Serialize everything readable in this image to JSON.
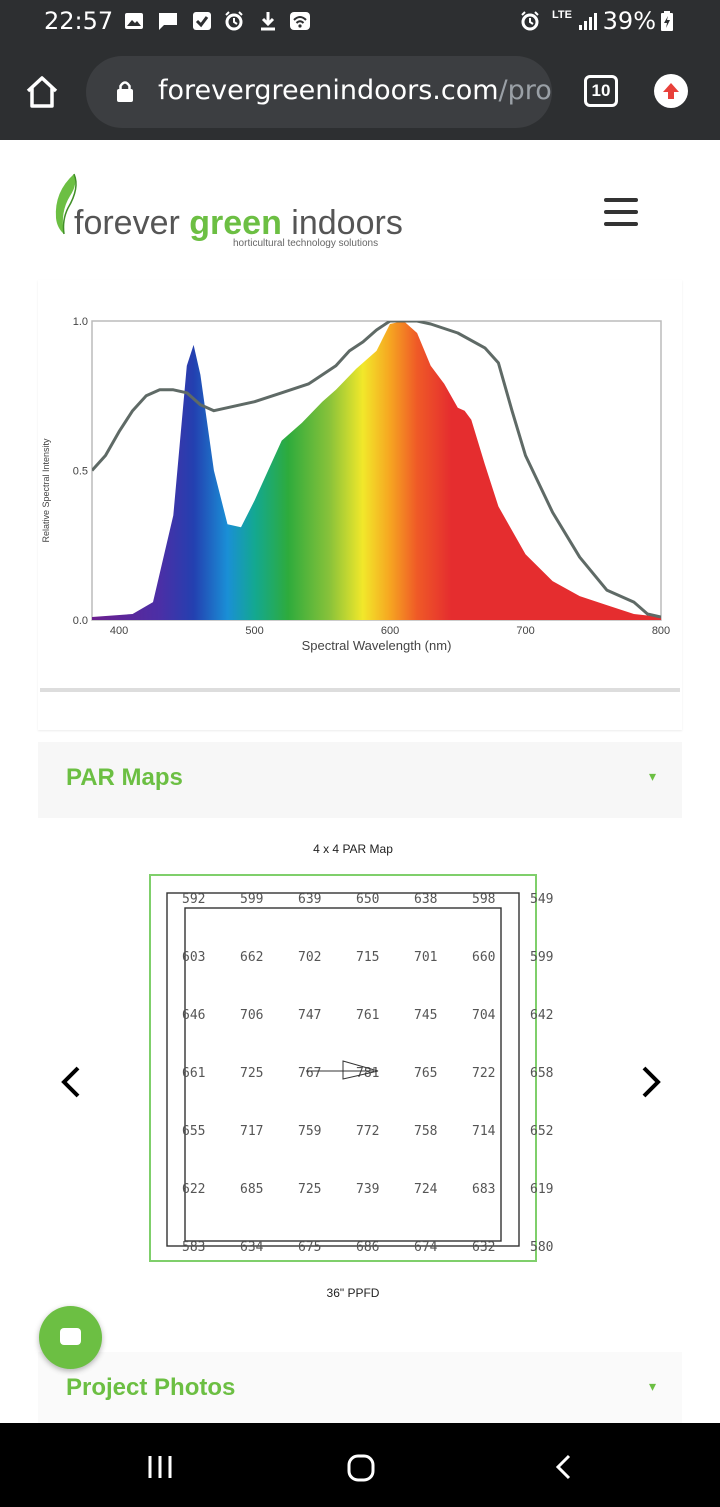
{
  "status_bar": {
    "time": "22:57",
    "network": "LTE",
    "battery": "39%",
    "icons": [
      "gallery-icon",
      "message-icon",
      "checkbox-icon",
      "alarm-icon",
      "download-icon",
      "wifi-icon",
      "alarm-icon",
      "signal-icon",
      "battery-charging-icon"
    ]
  },
  "browser": {
    "url_main": "forevergreenindoors.com",
    "url_rest": "/proc",
    "tab_count": "10"
  },
  "header": {
    "logo_word_1": "forever ",
    "logo_word_2": "green",
    "logo_word_3": " indoors",
    "logo_tagline": "horticultural technology solutions"
  },
  "spectrum_chart": {
    "xlabel": "Spectral Wavelength (nm)",
    "ylabel": "Relative Spectral Intensity",
    "xticks": [
      "400",
      "500",
      "600",
      "700",
      "800"
    ],
    "yticks": [
      "0.0",
      "0.5",
      "1.0"
    ]
  },
  "chart_data": {
    "type": "area",
    "xlabel": "Spectral Wavelength (nm)",
    "ylabel": "Relative Spectral Intensity",
    "xlim": [
      380,
      800
    ],
    "ylim": [
      0,
      1.0
    ],
    "series": [
      {
        "style": "filled-spectrum",
        "x": [
          380,
          410,
          425,
          440,
          450,
          455,
          460,
          470,
          480,
          490,
          500,
          510,
          520,
          535,
          550,
          560,
          575,
          590,
          600,
          610,
          620,
          630,
          640,
          650,
          655,
          660,
          670,
          680,
          700,
          720,
          740,
          760,
          780,
          800
        ],
        "y": [
          0.01,
          0.02,
          0.06,
          0.35,
          0.85,
          0.92,
          0.82,
          0.5,
          0.32,
          0.31,
          0.4,
          0.5,
          0.6,
          0.66,
          0.73,
          0.77,
          0.84,
          0.9,
          0.99,
          1.0,
          0.96,
          0.85,
          0.79,
          0.71,
          0.7,
          0.67,
          0.52,
          0.38,
          0.22,
          0.13,
          0.08,
          0.05,
          0.02,
          0.01
        ]
      },
      {
        "style": "outline",
        "x": [
          380,
          390,
          400,
          410,
          420,
          430,
          440,
          450,
          460,
          470,
          480,
          490,
          500,
          520,
          540,
          560,
          570,
          580,
          590,
          600,
          610,
          620,
          630,
          650,
          670,
          680,
          690,
          700,
          720,
          740,
          760,
          780,
          790,
          800
        ],
        "y": [
          0.5,
          0.55,
          0.63,
          0.7,
          0.75,
          0.77,
          0.77,
          0.76,
          0.72,
          0.7,
          0.71,
          0.72,
          0.73,
          0.76,
          0.79,
          0.85,
          0.9,
          0.93,
          0.97,
          1.0,
          1.0,
          1.0,
          0.99,
          0.96,
          0.91,
          0.86,
          0.7,
          0.55,
          0.36,
          0.21,
          0.1,
          0.06,
          0.02,
          0.01
        ]
      }
    ]
  },
  "par_section": {
    "heading": "PAR Maps",
    "toggle_icon": "▾",
    "map_title": "4 x 4 PAR Map",
    "map_footer": "36\" PPFD",
    "grid": [
      [
        "592",
        "599",
        "639",
        "650",
        "638",
        "598",
        "549"
      ],
      [
        "603",
        "662",
        "702",
        "715",
        "701",
        "660",
        "599"
      ],
      [
        "646",
        "706",
        "747",
        "761",
        "745",
        "704",
        "642"
      ],
      [
        "661",
        "725",
        "767",
        "781",
        "765",
        "722",
        "658"
      ],
      [
        "655",
        "717",
        "759",
        "772",
        "758",
        "714",
        "652"
      ],
      [
        "622",
        "685",
        "725",
        "739",
        "724",
        "683",
        "619"
      ],
      [
        "583",
        "634",
        "675",
        "686",
        "674",
        "632",
        "580"
      ]
    ]
  },
  "photos_section": {
    "heading": "Project Photos",
    "toggle_icon": "▾"
  },
  "colors": {
    "brand_green": "#6cbf43",
    "browser_chrome": "#2d2f31",
    "url_pill": "#3c3e41"
  }
}
